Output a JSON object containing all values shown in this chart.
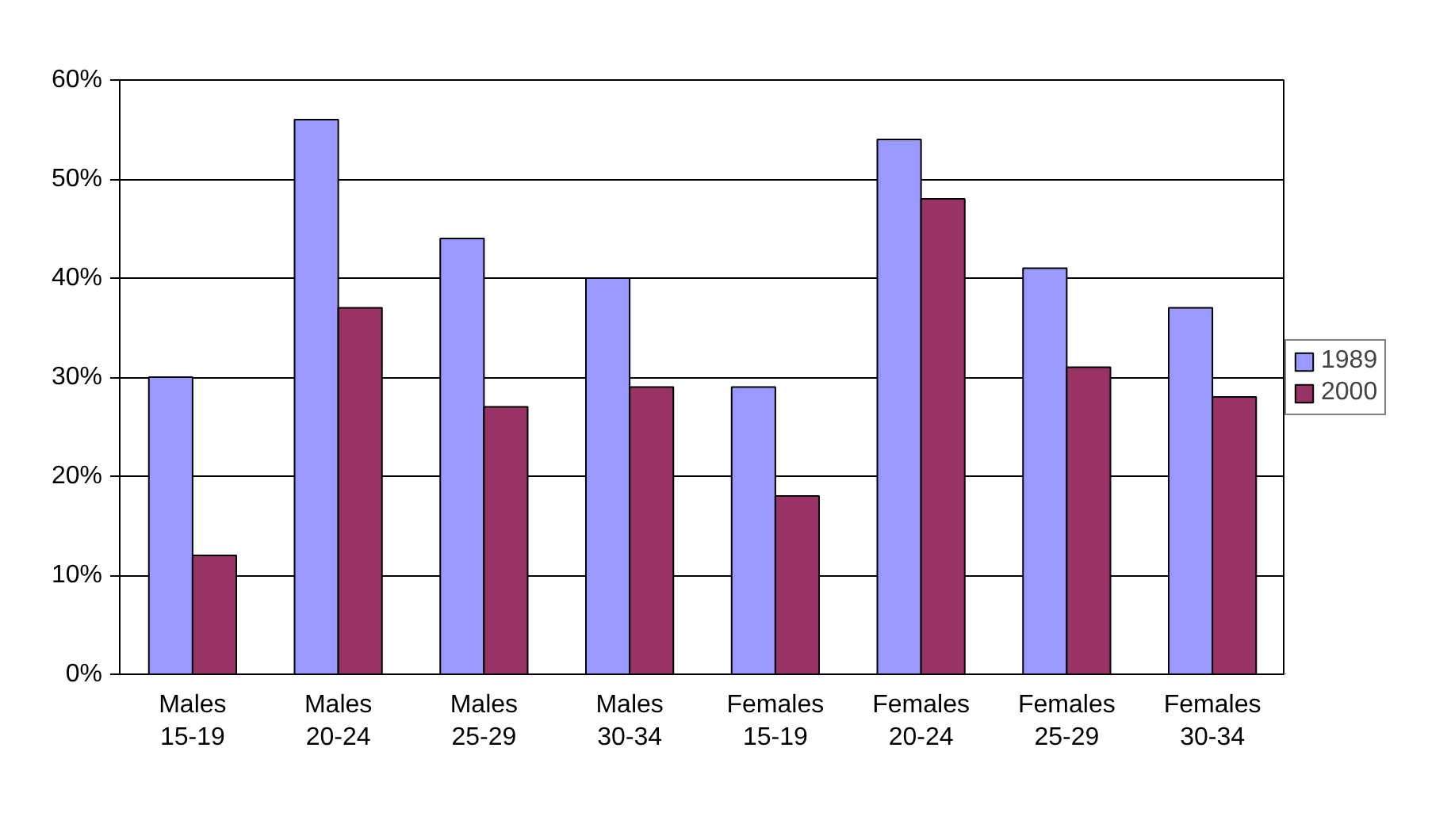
{
  "chart_data": {
    "type": "bar",
    "categories": [
      "Males\n15-19",
      "Males\n20-24",
      "Males\n25-29",
      "Males\n30-34",
      "Females\n15-19",
      "Females\n20-24",
      "Females\n25-29",
      "Females\n30-34"
    ],
    "series": [
      {
        "name": "1989",
        "color": "#9999ff",
        "values": [
          30,
          56,
          44,
          40,
          29,
          54,
          41,
          37
        ]
      },
      {
        "name": "2000",
        "color": "#993366",
        "values": [
          12,
          37,
          27,
          29,
          18,
          48,
          31,
          28
        ]
      }
    ],
    "ylim": [
      0,
      60
    ],
    "yticks": [
      {
        "value": 0,
        "label": "0%"
      },
      {
        "value": 10,
        "label": "10%"
      },
      {
        "value": 20,
        "label": "20%"
      },
      {
        "value": 30,
        "label": "30%"
      },
      {
        "value": 40,
        "label": "40%"
      },
      {
        "value": 50,
        "label": "50%"
      },
      {
        "value": 60,
        "label": "60%"
      }
    ],
    "grid": "y",
    "legend": "right"
  }
}
